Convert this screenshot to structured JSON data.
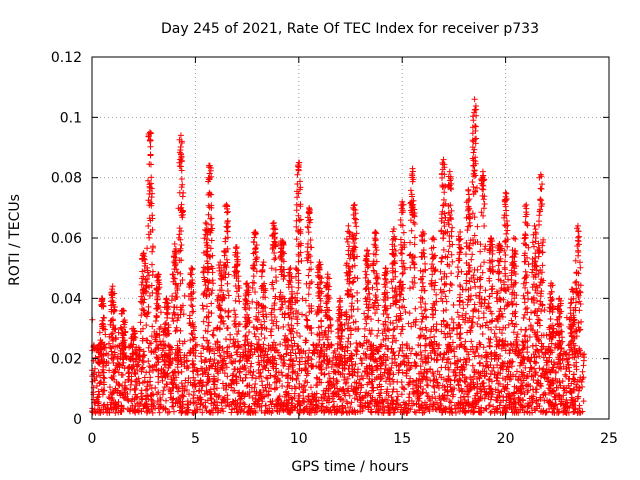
{
  "chart_data": {
    "type": "scatter",
    "title": "Day 245 of 2021, Rate Of TEC Index for receiver p733",
    "xlabel": "GPS time / hours",
    "ylabel": "ROTI / TECUs",
    "xlim": [
      0,
      25
    ],
    "ylim": [
      0,
      0.12
    ],
    "xticks": [
      0,
      5,
      10,
      15,
      20,
      25
    ],
    "xtick_labels": [
      "0",
      "5",
      "10",
      "15",
      "20",
      "25"
    ],
    "yticks": [
      0,
      0.02,
      0.04,
      0.06,
      0.08,
      0.1,
      0.12
    ],
    "ytick_labels": [
      "0",
      "0.02",
      "0.04",
      "0.06",
      "0.08",
      "0.1",
      "0.12"
    ],
    "grid": true,
    "marker": "plus",
    "series": [
      {
        "name": "ROTI",
        "color": "#ff0000",
        "data_extent_hours": [
          0,
          23.8
        ],
        "baseline_range": [
          0.002,
          0.025
        ],
        "peaks": [
          {
            "x": 0.5,
            "y": 0.04
          },
          {
            "x": 1.0,
            "y": 0.044
          },
          {
            "x": 1.5,
            "y": 0.036
          },
          {
            "x": 2.0,
            "y": 0.03
          },
          {
            "x": 2.5,
            "y": 0.055
          },
          {
            "x": 2.8,
            "y": 0.095
          },
          {
            "x": 3.2,
            "y": 0.048
          },
          {
            "x": 3.6,
            "y": 0.04
          },
          {
            "x": 4.0,
            "y": 0.058
          },
          {
            "x": 4.3,
            "y": 0.094
          },
          {
            "x": 4.8,
            "y": 0.05
          },
          {
            "x": 5.5,
            "y": 0.065
          },
          {
            "x": 5.7,
            "y": 0.084
          },
          {
            "x": 6.2,
            "y": 0.052
          },
          {
            "x": 6.5,
            "y": 0.071
          },
          {
            "x": 7.0,
            "y": 0.057
          },
          {
            "x": 7.5,
            "y": 0.045
          },
          {
            "x": 7.9,
            "y": 0.062
          },
          {
            "x": 8.3,
            "y": 0.052
          },
          {
            "x": 8.8,
            "y": 0.065
          },
          {
            "x": 9.2,
            "y": 0.059
          },
          {
            "x": 9.6,
            "y": 0.05
          },
          {
            "x": 10.0,
            "y": 0.085
          },
          {
            "x": 10.5,
            "y": 0.07
          },
          {
            "x": 11.0,
            "y": 0.052
          },
          {
            "x": 11.4,
            "y": 0.048
          },
          {
            "x": 12.0,
            "y": 0.04
          },
          {
            "x": 12.4,
            "y": 0.064
          },
          {
            "x": 12.7,
            "y": 0.071
          },
          {
            "x": 13.3,
            "y": 0.056
          },
          {
            "x": 13.7,
            "y": 0.062
          },
          {
            "x": 14.2,
            "y": 0.05
          },
          {
            "x": 14.6,
            "y": 0.063
          },
          {
            "x": 15.0,
            "y": 0.072
          },
          {
            "x": 15.5,
            "y": 0.083
          },
          {
            "x": 16.0,
            "y": 0.062
          },
          {
            "x": 16.5,
            "y": 0.06
          },
          {
            "x": 17.0,
            "y": 0.086
          },
          {
            "x": 17.3,
            "y": 0.082
          },
          {
            "x": 17.8,
            "y": 0.062
          },
          {
            "x": 18.2,
            "y": 0.076
          },
          {
            "x": 18.5,
            "y": 0.106
          },
          {
            "x": 18.9,
            "y": 0.082
          },
          {
            "x": 19.3,
            "y": 0.06
          },
          {
            "x": 19.7,
            "y": 0.058
          },
          {
            "x": 20.0,
            "y": 0.075
          },
          {
            "x": 20.4,
            "y": 0.06
          },
          {
            "x": 21.0,
            "y": 0.071
          },
          {
            "x": 21.4,
            "y": 0.064
          },
          {
            "x": 21.7,
            "y": 0.081
          },
          {
            "x": 22.2,
            "y": 0.045
          },
          {
            "x": 22.6,
            "y": 0.04
          },
          {
            "x": 23.2,
            "y": 0.043
          },
          {
            "x": 23.5,
            "y": 0.064
          }
        ]
      }
    ]
  }
}
